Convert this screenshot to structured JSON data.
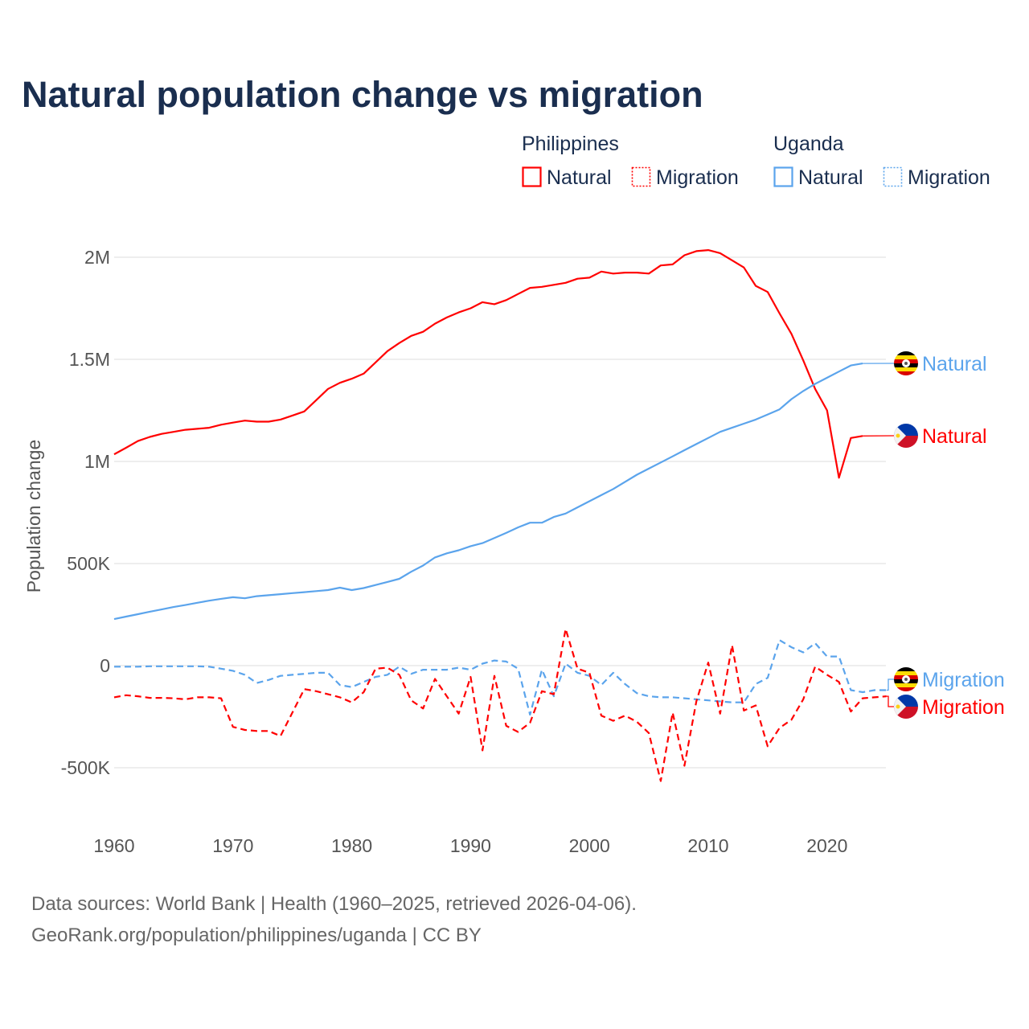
{
  "chart_data": {
    "type": "line",
    "title": "Natural population change vs migration",
    "ylabel": "Population change",
    "xlabel": "",
    "ylim": [
      -650000,
      2150000
    ],
    "xlim": [
      1960,
      2025
    ],
    "grid": true,
    "y_ticks": [
      {
        "value": 2000000,
        "label": "2M"
      },
      {
        "value": 1500000,
        "label": "1.5M"
      },
      {
        "value": 1000000,
        "label": "1M"
      },
      {
        "value": 500000,
        "label": "500K"
      },
      {
        "value": 0,
        "label": "0"
      },
      {
        "value": -500000,
        "label": "-500K"
      }
    ],
    "x_ticks": [
      {
        "value": 1960,
        "label": "1960"
      },
      {
        "value": 1970,
        "label": "1970"
      },
      {
        "value": 1980,
        "label": "1980"
      },
      {
        "value": 1990,
        "label": "1990"
      },
      {
        "value": 2000,
        "label": "2000"
      },
      {
        "value": 2010,
        "label": "2010"
      },
      {
        "value": 2020,
        "label": "2020"
      }
    ],
    "legend": {
      "placement": "top-right",
      "groups": [
        {
          "country": "Philippines",
          "items": [
            "Natural",
            "Migration"
          ]
        },
        {
          "country": "Uganda",
          "items": [
            "Natural",
            "Migration"
          ]
        }
      ]
    },
    "series": [
      {
        "name": "Philippines Natural",
        "country": "Philippines",
        "label": "Natural",
        "style": "solid",
        "color": "#ff0000",
        "flag": "philippines-flag",
        "start_year": 1960,
        "values": [
          1035000,
          1067000,
          1100000,
          1120000,
          1135000,
          1145000,
          1155000,
          1160000,
          1165000,
          1180000,
          1190000,
          1200000,
          1195000,
          1195000,
          1205000,
          1225000,
          1245000,
          1300000,
          1355000,
          1385000,
          1405000,
          1430000,
          1485000,
          1540000,
          1580000,
          1615000,
          1635000,
          1675000,
          1705000,
          1730000,
          1750000,
          1780000,
          1770000,
          1790000,
          1820000,
          1850000,
          1855000,
          1865000,
          1875000,
          1895000,
          1900000,
          1930000,
          1920000,
          1925000,
          1925000,
          1920000,
          1960000,
          1965000,
          2010000,
          2030000,
          2035000,
          2020000,
          1985000,
          1950000,
          1860000,
          1830000,
          1725000,
          1625000,
          1495000,
          1355000,
          1250000,
          920000,
          1115000,
          1125000
        ]
      },
      {
        "name": "Uganda Natural",
        "country": "Uganda",
        "label": "Natural",
        "style": "solid",
        "color": "#5ba4ec",
        "flag": "uganda-flag",
        "start_year": 1960,
        "values": [
          228000,
          240000,
          252000,
          264000,
          275000,
          287000,
          297000,
          308000,
          318000,
          327000,
          335000,
          330000,
          340000,
          345000,
          350000,
          355000,
          360000,
          365000,
          370000,
          382000,
          370000,
          380000,
          395000,
          410000,
          425000,
          460000,
          490000,
          530000,
          550000,
          565000,
          585000,
          600000,
          625000,
          650000,
          677000,
          700000,
          700000,
          728000,
          745000,
          775000,
          805000,
          835000,
          865000,
          900000,
          935000,
          965000,
          995000,
          1025000,
          1055000,
          1085000,
          1115000,
          1145000,
          1165000,
          1185000,
          1205000,
          1230000,
          1255000,
          1305000,
          1345000,
          1380000,
          1410000,
          1440000,
          1470000,
          1480000
        ]
      },
      {
        "name": "Uganda Migration",
        "country": "Uganda",
        "label": "Migration",
        "style": "dashed",
        "color": "#5ba4ec",
        "flag": "uganda-flag",
        "start_year": 1960,
        "values": [
          -5000,
          -5000,
          -5000,
          -3000,
          -3000,
          -3000,
          -3000,
          -3000,
          -5000,
          -15000,
          -25000,
          -45000,
          -85000,
          -70000,
          -50000,
          -45000,
          -40000,
          -35000,
          -35000,
          -95000,
          -105000,
          -80000,
          -55000,
          -45000,
          -5000,
          -40000,
          -20000,
          -20000,
          -20000,
          -10000,
          -20000,
          10000,
          25000,
          20000,
          -15000,
          -240000,
          -20000,
          -150000,
          10000,
          -35000,
          -50000,
          -95000,
          -35000,
          -90000,
          -135000,
          -150000,
          -155000,
          -155000,
          -160000,
          -165000,
          -170000,
          -175000,
          -180000,
          -180000,
          -90000,
          -60000,
          125000,
          90000,
          65000,
          110000,
          45000,
          45000,
          -120000,
          -130000,
          -120000,
          -120000
        ]
      },
      {
        "name": "Philippines Migration",
        "country": "Philippines",
        "label": "Migration",
        "style": "dashed",
        "color": "#ff0000",
        "flag": "philippines-flag",
        "start_year": 1960,
        "values": [
          -155000,
          -145000,
          -150000,
          -158000,
          -158000,
          -160000,
          -165000,
          -155000,
          -155000,
          -160000,
          -300000,
          -315000,
          -320000,
          -320000,
          -345000,
          -230000,
          -115000,
          -125000,
          -140000,
          -155000,
          -180000,
          -130000,
          -15000,
          -10000,
          -45000,
          -170000,
          -210000,
          -65000,
          -150000,
          -235000,
          -55000,
          -415000,
          -50000,
          -295000,
          -325000,
          -280000,
          -125000,
          -140000,
          180000,
          -15000,
          -35000,
          -245000,
          -270000,
          -245000,
          -275000,
          -330000,
          -565000,
          -230000,
          -490000,
          -175000,
          15000,
          -235000,
          100000,
          -220000,
          -195000,
          -395000,
          -305000,
          -265000,
          -165000,
          -5000,
          -45000,
          -80000,
          -225000,
          -160000,
          -155000,
          -150000
        ]
      }
    ]
  },
  "footer": {
    "line1": "Data sources: World Bank | Health (1960–2025, retrieved 2026-04-06).",
    "line2": "GeoRank.org/population/philippines/uganda | CC BY"
  },
  "colors": {
    "philippines": "#ff0000",
    "uganda": "#5ba4ec",
    "title": "#1a2e4f"
  }
}
